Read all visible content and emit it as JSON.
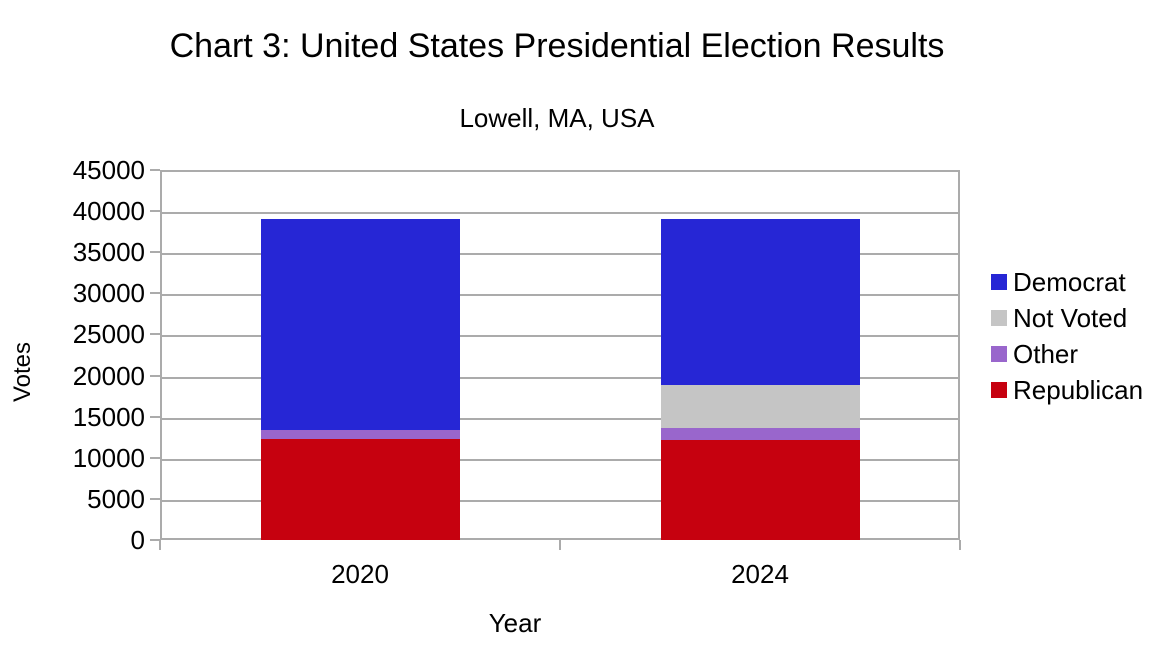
{
  "chart_data": {
    "type": "bar",
    "stacked": true,
    "title": "Chart 3: United States Presidential Election Results",
    "subtitle": "Lowell, MA, USA",
    "xlabel": "Year",
    "ylabel": "Votes",
    "categories": [
      "2020",
      "2024"
    ],
    "series": [
      {
        "name": "Republican",
        "color": "#C6010F",
        "values": [
          12300,
          12200
        ]
      },
      {
        "name": "Other",
        "color": "#9966CC",
        "values": [
          1100,
          1400
        ]
      },
      {
        "name": "Not Voted",
        "color": "#C5C5C5",
        "values": [
          0,
          5300
        ]
      },
      {
        "name": "Democrat",
        "color": "#2626D5",
        "values": [
          25600,
          20100
        ]
      }
    ],
    "series_note": "series listed bottom-to-top in stack order",
    "totals": [
      39000,
      39000
    ],
    "ylim": [
      0,
      45000
    ],
    "ytick_step": 5000,
    "ytick_labels": [
      "0",
      "5000",
      "10000",
      "15000",
      "20000",
      "25000",
      "30000",
      "35000",
      "40000",
      "45000"
    ],
    "grid": true,
    "legend": {
      "position": "right",
      "order": [
        "Democrat",
        "Not Voted",
        "Other",
        "Republican"
      ]
    },
    "axis_color": "#ABABAB",
    "text_color": "#000000",
    "background": "#FFFFFF"
  }
}
